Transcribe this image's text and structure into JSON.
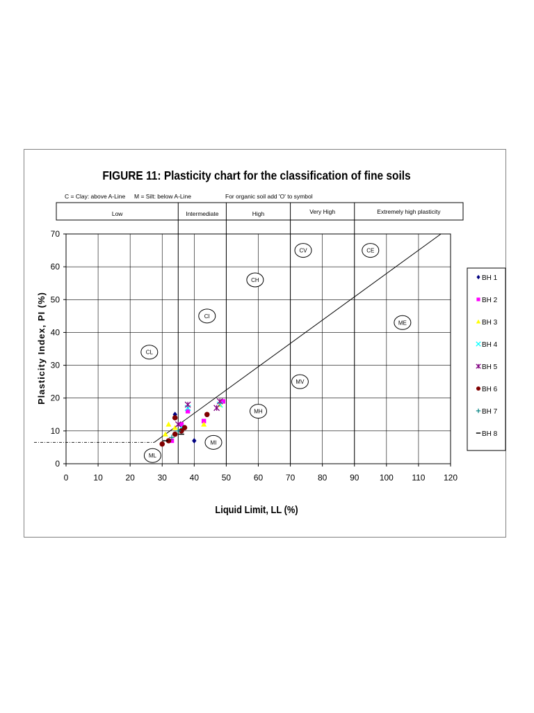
{
  "chart_data": {
    "type": "scatter",
    "title": "FIGURE 11: Plasticity chart for the classification of fine soils",
    "notes": [
      "C = Clay: above A-Line",
      "M = Silt: below A-Line",
      "For organic soil add 'O' to symbol"
    ],
    "plasticity_bands": [
      "Low",
      "Intermediate",
      "High",
      "Very High",
      "Extremely high plasticity"
    ],
    "band_boundaries": [
      35,
      50,
      70,
      90
    ],
    "xlabel": "Liquid Limit, LL (%)",
    "ylabel": "Plasticity Index, PI (%)",
    "xlim": [
      0,
      120
    ],
    "ylim": [
      0,
      70
    ],
    "xticks": [
      0,
      10,
      20,
      30,
      40,
      50,
      60,
      70,
      80,
      90,
      100,
      110,
      120
    ],
    "yticks": [
      0,
      10,
      20,
      30,
      40,
      50,
      60,
      70
    ],
    "grid": true,
    "legend_position": "right",
    "a_line": [
      [
        27.5,
        6.5
      ],
      [
        117,
        70
      ]
    ],
    "lower_limit_line": [
      [
        0,
        6.5
      ],
      [
        27.5,
        6.5
      ]
    ],
    "zone_labels": [
      {
        "text": "CV",
        "x": 74,
        "y": 65
      },
      {
        "text": "CE",
        "x": 95,
        "y": 65
      },
      {
        "text": "CH",
        "x": 59,
        "y": 56
      },
      {
        "text": "CI",
        "x": 44,
        "y": 45
      },
      {
        "text": "ME",
        "x": 105,
        "y": 43
      },
      {
        "text": "CL",
        "x": 26,
        "y": 34
      },
      {
        "text": "MV",
        "x": 73,
        "y": 25
      },
      {
        "text": "MH",
        "x": 60,
        "y": 16
      },
      {
        "text": "MI",
        "x": 46,
        "y": 6.5
      },
      {
        "text": "ML",
        "x": 27,
        "y": 2.5
      }
    ],
    "series": [
      {
        "name": "BH 1",
        "marker": "diamond",
        "color": "#000080",
        "points": [
          [
            34,
            15
          ],
          [
            40,
            7
          ]
        ]
      },
      {
        "name": "BH 2",
        "marker": "square",
        "color": "#ff00ff",
        "points": [
          [
            38,
            16
          ],
          [
            43,
            13
          ],
          [
            49,
            19
          ],
          [
            33,
            7
          ],
          [
            36,
            12
          ]
        ]
      },
      {
        "name": "BH 3",
        "marker": "triangle",
        "color": "#ffff00",
        "points": [
          [
            32,
            12
          ],
          [
            43,
            12
          ],
          [
            48,
            18
          ],
          [
            34,
            11
          ],
          [
            31,
            9
          ]
        ]
      },
      {
        "name": "BH 4",
        "marker": "x",
        "color": "#00ffff",
        "points": [
          [
            38,
            17
          ],
          [
            48,
            18
          ],
          [
            36,
            11
          ]
        ]
      },
      {
        "name": "BH 5",
        "marker": "star",
        "color": "#800080",
        "points": [
          [
            38,
            18
          ],
          [
            47,
            17
          ],
          [
            35,
            12
          ],
          [
            48,
            19
          ]
        ]
      },
      {
        "name": "BH 6",
        "marker": "circle",
        "color": "#800000",
        "points": [
          [
            30,
            6
          ],
          [
            32,
            7
          ],
          [
            34,
            9
          ],
          [
            36,
            10
          ],
          [
            37,
            11
          ],
          [
            44,
            15
          ],
          [
            34,
            14
          ]
        ]
      },
      {
        "name": "BH 7",
        "marker": "plus",
        "color": "#008080",
        "points": [
          [
            33,
            8
          ],
          [
            35,
            10
          ]
        ]
      },
      {
        "name": "BH 8",
        "marker": "dash",
        "color": "#000000",
        "points": [
          [
            31,
            7
          ],
          [
            36,
            9
          ]
        ]
      }
    ]
  }
}
